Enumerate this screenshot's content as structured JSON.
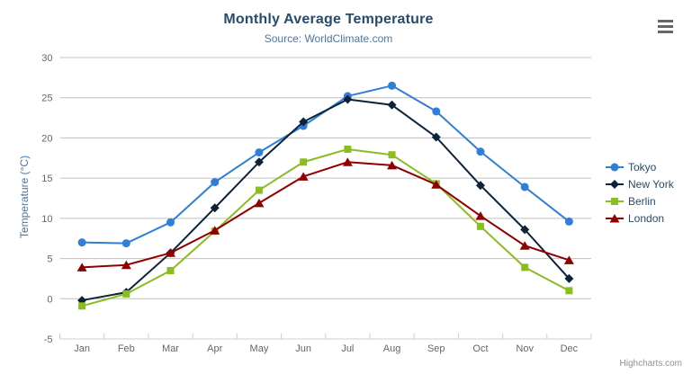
{
  "header": {
    "title": "Monthly Average Temperature",
    "subtitle": "Source: WorldClimate.com"
  },
  "export_menu": {
    "icon": "hamburger-icon"
  },
  "credits": {
    "text": "Highcharts.com"
  },
  "legend": {
    "position": "right"
  },
  "colors": {
    "title": "#274b6d",
    "subtitle": "#4d759e",
    "axis_title": "#4d759e",
    "axis_label": "#666666",
    "axis_line": "#C0D0E0",
    "grid": "#C0C0C0",
    "legend_text": "#274b6d",
    "credits": "#909090",
    "menu_icon": "#666666"
  },
  "chart_data": {
    "type": "line",
    "title": "Monthly Average Temperature",
    "subtitle": "Source: WorldClimate.com",
    "xlabel": "",
    "ylabel": "Temperature (°C)",
    "ylim": [
      -5,
      30
    ],
    "yticks": [
      -5,
      0,
      5,
      10,
      15,
      20,
      25,
      30
    ],
    "grid": true,
    "legend_position": "right",
    "categories": [
      "Jan",
      "Feb",
      "Mar",
      "Apr",
      "May",
      "Jun",
      "Jul",
      "Aug",
      "Sep",
      "Oct",
      "Nov",
      "Dec"
    ],
    "series": [
      {
        "name": "Tokyo",
        "color": "#2f7ed8",
        "marker": "circle",
        "values": [
          7.0,
          6.9,
          9.5,
          14.5,
          18.2,
          21.5,
          25.2,
          26.5,
          23.3,
          18.3,
          13.9,
          9.6
        ]
      },
      {
        "name": "New York",
        "color": "#0d233a",
        "marker": "diamond",
        "values": [
          -0.2,
          0.8,
          5.7,
          11.3,
          17.0,
          22.0,
          24.8,
          24.1,
          20.1,
          14.1,
          8.6,
          2.5
        ]
      },
      {
        "name": "Berlin",
        "color": "#8bbc21",
        "marker": "square",
        "values": [
          -0.9,
          0.6,
          3.5,
          8.4,
          13.5,
          17.0,
          18.6,
          17.9,
          14.3,
          9.0,
          3.9,
          1.0
        ]
      },
      {
        "name": "London",
        "color": "#910000",
        "marker": "triangle",
        "values": [
          3.9,
          4.2,
          5.7,
          8.5,
          11.9,
          15.2,
          17.0,
          16.6,
          14.2,
          10.3,
          6.6,
          4.8
        ]
      }
    ]
  }
}
